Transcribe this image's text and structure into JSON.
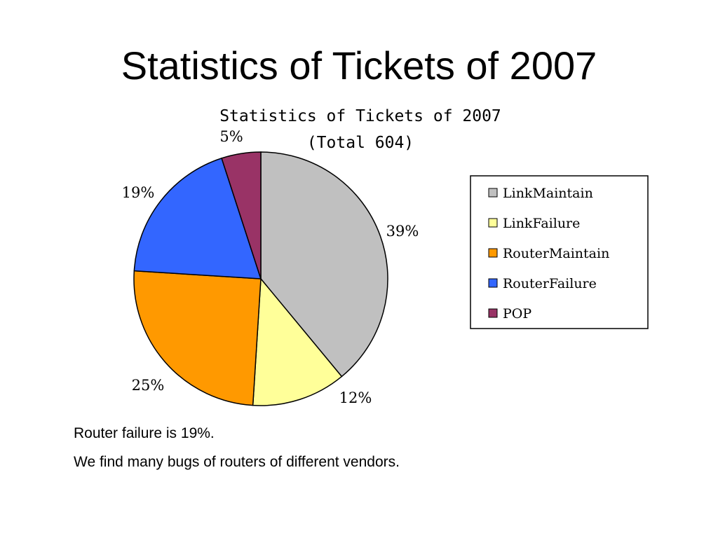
{
  "slide": {
    "title": "Statistics of Tickets of 2007",
    "notes": [
      "Router failure is 19%.",
      "We find many bugs of routers of different vendors."
    ]
  },
  "chart_data": {
    "type": "pie",
    "title": "Statistics of Tickets of 2007",
    "subtitle": "(Total 604)",
    "total": 604,
    "legend_position": "right",
    "slices": [
      {
        "name": "LinkMaintain",
        "value": 39,
        "label": "39%",
        "color": "#c0c0c0"
      },
      {
        "name": "LinkFailure",
        "value": 12,
        "label": "12%",
        "color": "#ffff99"
      },
      {
        "name": "RouterMaintain",
        "value": 25,
        "label": "25%",
        "color": "#ff9900"
      },
      {
        "name": "RouterFailure",
        "value": 19,
        "label": "19%",
        "color": "#3366ff"
      },
      {
        "name": "POP",
        "value": 5,
        "label": "5%",
        "color": "#993366"
      }
    ]
  }
}
